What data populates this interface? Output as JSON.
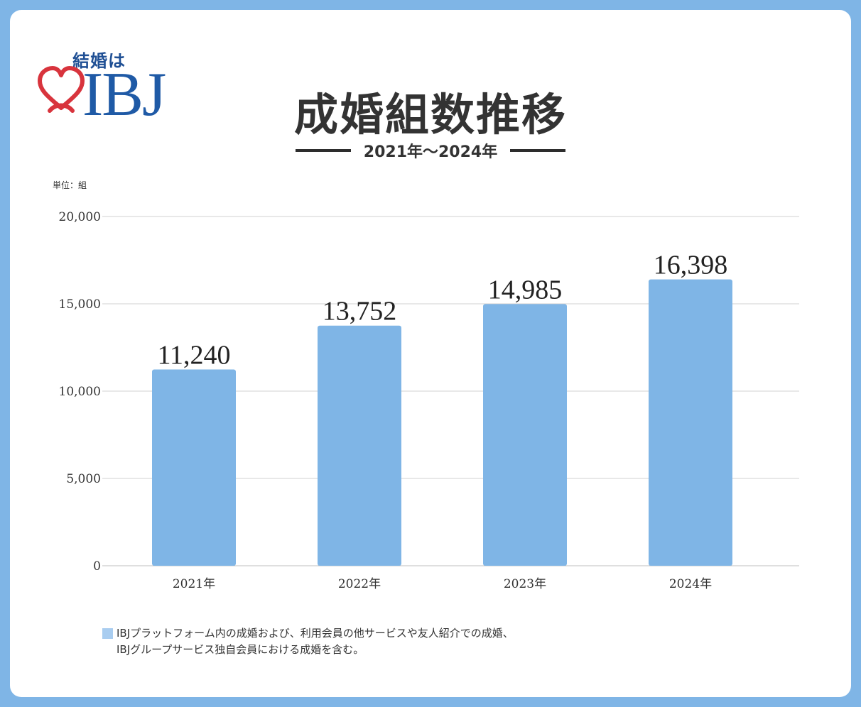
{
  "logo": {
    "tagline": "結婚は",
    "mark": "IBJ",
    "heart_color": "#d8343d",
    "mark_color": "#1f5aa6"
  },
  "header": {
    "title": "成婚組数推移",
    "subtitle": "2021年〜2024年"
  },
  "unit_label": "単位：組",
  "chart_data": {
    "type": "bar",
    "categories": [
      "2021年",
      "2022年",
      "2023年",
      "2024年"
    ],
    "values": [
      11240,
      13752,
      14985,
      16398
    ],
    "data_labels": [
      "11,240",
      "13,752",
      "14,985",
      "16,398"
    ],
    "y_ticks": [
      0,
      5000,
      10000,
      15000,
      20000
    ],
    "y_tick_labels": [
      "0",
      "5,000",
      "10,000",
      "15,000",
      "20,000"
    ],
    "ylim": [
      0,
      20000
    ],
    "grid": true,
    "bar_color": "#7fb5e6"
  },
  "note": {
    "line1": "IBJプラットフォーム内の成婚および、利用会員の他サービスや友人紹介での成婚、",
    "line2": "IBJグループサービス独自会員における成婚を含む。",
    "swatch_color": "#a9cdf0"
  }
}
